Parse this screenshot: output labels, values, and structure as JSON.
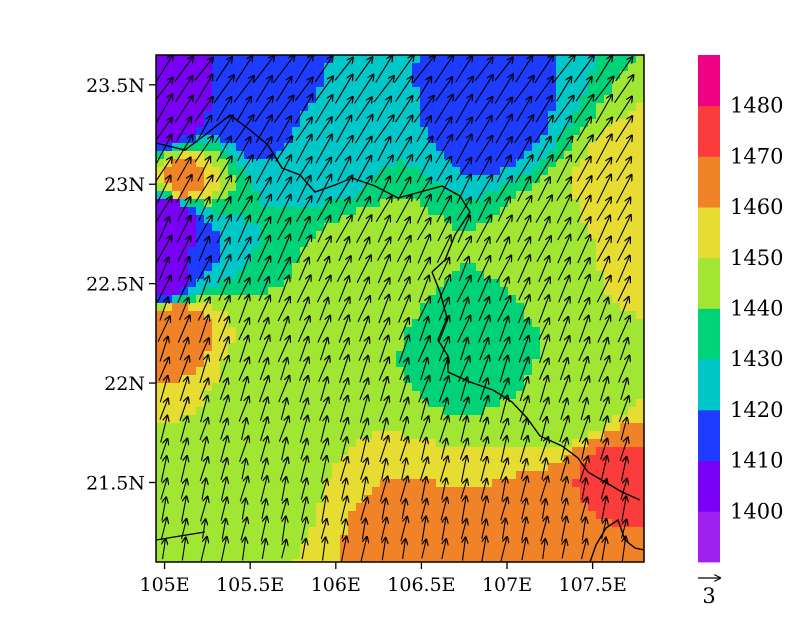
{
  "chart_data": {
    "type": "heatmap",
    "title": "",
    "xlabel": "",
    "ylabel": "",
    "x_range": [
      104.95,
      107.8
    ],
    "y_range": [
      21.1,
      23.65
    ],
    "x_ticks": [
      {
        "value": 105.0,
        "label": "105E"
      },
      {
        "value": 105.5,
        "label": "105.5E"
      },
      {
        "value": 106.0,
        "label": "106E"
      },
      {
        "value": 106.5,
        "label": "106.5E"
      },
      {
        "value": 107.0,
        "label": "107E"
      },
      {
        "value": 107.5,
        "label": "107.5E"
      }
    ],
    "y_ticks": [
      {
        "value": 23.5,
        "label": "23.5N"
      },
      {
        "value": 23.0,
        "label": "23N"
      },
      {
        "value": 22.5,
        "label": "22.5N"
      },
      {
        "value": 22.0,
        "label": "22N"
      },
      {
        "value": 21.5,
        "label": "21.5N"
      }
    ],
    "colorbar": {
      "levels": [
        1400,
        1410,
        1420,
        1430,
        1440,
        1450,
        1460,
        1470,
        1480
      ],
      "labels": [
        "1400",
        "1410",
        "1420",
        "1430",
        "1440",
        "1450",
        "1460",
        "1470",
        "1480"
      ],
      "colors": [
        "#a020f0",
        "#7a00f5",
        "#1e3cff",
        "#00c8c8",
        "#00d278",
        "#a0e632",
        "#e6dc32",
        "#f08228",
        "#fa3c3c",
        "#f00082"
      ]
    },
    "field_samples": [
      {
        "lon": 105.0,
        "lat": 23.35,
        "value": 1400
      },
      {
        "lon": 105.05,
        "lat": 22.85,
        "value": 1400
      },
      {
        "lon": 105.0,
        "lat": 22.5,
        "value": 1405
      },
      {
        "lon": 105.1,
        "lat": 23.0,
        "value": 1465
      },
      {
        "lon": 105.05,
        "lat": 22.3,
        "value": 1470
      },
      {
        "lon": 105.5,
        "lat": 23.4,
        "value": 1412
      },
      {
        "lon": 106.9,
        "lat": 23.35,
        "value": 1415
      },
      {
        "lon": 106.2,
        "lat": 22.65,
        "value": 1448
      },
      {
        "lon": 105.6,
        "lat": 22.0,
        "value": 1447
      },
      {
        "lon": 105.5,
        "lat": 21.5,
        "value": 1446
      },
      {
        "lon": 107.6,
        "lat": 21.55,
        "value": 1472
      },
      {
        "lon": 106.8,
        "lat": 22.2,
        "value": 1436
      },
      {
        "lon": 107.3,
        "lat": 22.7,
        "value": 1446
      },
      {
        "lon": 107.7,
        "lat": 22.85,
        "value": 1460
      },
      {
        "lon": 107.2,
        "lat": 21.2,
        "value": 1465
      },
      {
        "lon": 106.4,
        "lat": 21.2,
        "value": 1462
      },
      {
        "lon": 107.4,
        "lat": 21.9,
        "value": 1440
      },
      {
        "lon": 106.0,
        "lat": 23.1,
        "value": 1428
      }
    ],
    "wind": {
      "reference_vector_label": "3",
      "mean_direction_deg": 60,
      "mean_speed": 3
    }
  }
}
